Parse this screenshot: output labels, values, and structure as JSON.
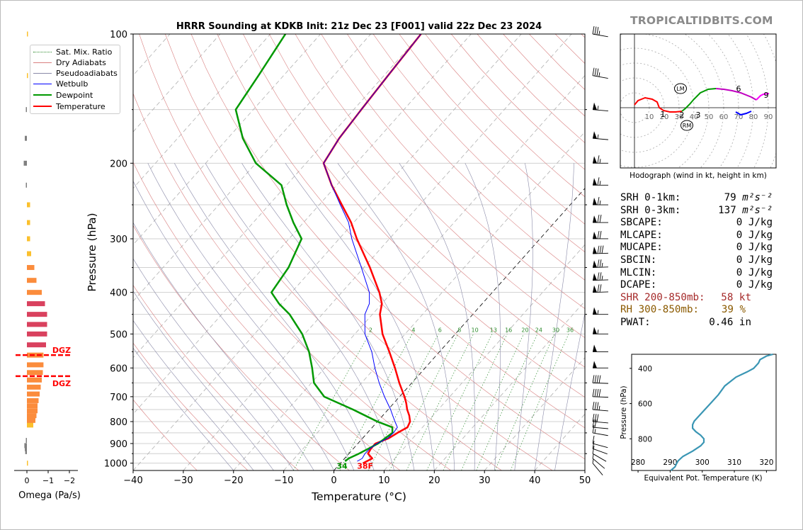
{
  "brand": "TROPICALTIDBITS.COM",
  "chart_data": [
    {
      "type": "line",
      "chart_kind": "skew-t log-p sounding",
      "title": "HRRR Sounding at KDKB Init: 21z Dec 23 [F001] valid 22z Dec 23 2024",
      "xlabel": "Temperature (°C)",
      "ylabel": "Pressure (hPa)",
      "xlim": [
        -40,
        50
      ],
      "ylim": [
        1040,
        100
      ],
      "y_scale": "log",
      "x_ticks": [
        "−40",
        "−30",
        "−20",
        "−10",
        "0",
        "10",
        "20",
        "30",
        "40",
        "50"
      ],
      "y_ticks": [
        "100",
        "200",
        "300",
        "400",
        "500",
        "600",
        "700",
        "800",
        "900",
        "1000"
      ],
      "legend_position": "top-left",
      "legend": [
        {
          "label": "Sat. Mix. Ratio",
          "color": "#2e8b2e",
          "style": "dotted"
        },
        {
          "label": "Dry Adiabats",
          "color": "#d98080",
          "style": "solid"
        },
        {
          "label": "Pseudoadiabats",
          "color": "#8a8aa8",
          "style": "solid"
        },
        {
          "label": "Wetbulb",
          "color": "#0000ff",
          "style": "solid"
        },
        {
          "label": "Dewpoint",
          "color": "#009900",
          "style": "solid"
        },
        {
          "label": "Temperature",
          "color": "#ff0000",
          "style": "solid"
        }
      ],
      "series": [
        {
          "name": "Temperature",
          "color": "#ff0000",
          "points": [
            [
              1000,
              4.5
            ],
            [
              975,
              5.5
            ],
            [
              950,
              3.8
            ],
            [
              925,
              3.5
            ],
            [
              900,
              3.5
            ],
            [
              875,
              5.2
            ],
            [
              850,
              6.0
            ],
            [
              825,
              7.0
            ],
            [
              800,
              6.5
            ],
            [
              775,
              5.3
            ],
            [
              750,
              3.8
            ],
            [
              725,
              2.5
            ],
            [
              700,
              1.0
            ],
            [
              650,
              -2.5
            ],
            [
              600,
              -6.0
            ],
            [
              550,
              -10.0
            ],
            [
              500,
              -14.5
            ],
            [
              450,
              -18.5
            ],
            [
              425,
              -20.0
            ],
            [
              400,
              -22.5
            ],
            [
              350,
              -28.8
            ],
            [
              300,
              -36.5
            ],
            [
              275,
              -40.5
            ],
            [
              250,
              -45.5
            ],
            [
              225,
              -51.0
            ],
            [
              200,
              -56.5
            ],
            [
              175,
              -57.8
            ],
            [
              150,
              -58.5
            ],
            [
              125,
              -59.2
            ],
            [
              100,
              -60.0
            ]
          ]
        },
        {
          "name": "Dewpoint",
          "color": "#009900",
          "points": [
            [
              990,
              0.6
            ],
            [
              975,
              0.8
            ],
            [
              950,
              2.0
            ],
            [
              925,
              3.0
            ],
            [
              900,
              4.0
            ],
            [
              850,
              5.0
            ],
            [
              825,
              4.0
            ],
            [
              800,
              0.0
            ],
            [
              750,
              -7.0
            ],
            [
              700,
              -15.0
            ],
            [
              650,
              -19.5
            ],
            [
              600,
              -22.5
            ],
            [
              550,
              -26.0
            ],
            [
              500,
              -30.5
            ],
            [
              450,
              -36.5
            ],
            [
              425,
              -40.5
            ],
            [
              400,
              -44.0
            ],
            [
              350,
              -45.0
            ],
            [
              300,
              -47.5
            ],
            [
              275,
              -52.0
            ],
            [
              250,
              -56.5
            ],
            [
              225,
              -61.0
            ],
            [
              200,
              -70.0
            ],
            [
              175,
              -77.0
            ],
            [
              150,
              -83.5
            ],
            [
              125,
              -85.0
            ],
            [
              100,
              -87.0
            ]
          ]
        },
        {
          "name": "Wetbulb",
          "color": "#0000ff",
          "points": [
            [
              990,
              3.0
            ],
            [
              975,
              3.5
            ],
            [
              950,
              3.2
            ],
            [
              925,
              3.3
            ],
            [
              900,
              3.8
            ],
            [
              875,
              5.0
            ],
            [
              850,
              5.2
            ],
            [
              825,
              5.0
            ],
            [
              800,
              3.5
            ],
            [
              775,
              2.0
            ],
            [
              750,
              0.5
            ],
            [
              700,
              -3.0
            ],
            [
              650,
              -6.5
            ],
            [
              600,
              -10.0
            ],
            [
              550,
              -13.5
            ],
            [
              500,
              -18.0
            ],
            [
              450,
              -21.5
            ],
            [
              425,
              -22.5
            ],
            [
              400,
              -24.5
            ],
            [
              350,
              -30.5
            ],
            [
              300,
              -37.5
            ],
            [
              275,
              -41.0
            ],
            [
              250,
              -45.8
            ],
            [
              225,
              -51.0
            ],
            [
              200,
              -56.5
            ],
            [
              175,
              -57.8
            ],
            [
              150,
              -58.5
            ],
            [
              125,
              -59.2
            ],
            [
              100,
              -60.0
            ]
          ]
        }
      ],
      "mixing_ratio_labels": [
        "2",
        "4",
        "6",
        "8",
        "10",
        "13",
        "16",
        "20",
        "24",
        "30",
        "36"
      ],
      "surface_dewpoint_label": "34",
      "surface_temp_label": "38F"
    },
    {
      "type": "bar",
      "chart_kind": "omega profile",
      "xlabel": "Omega (Pa/s)",
      "x_ticks": [
        "0",
        "−1",
        "−2"
      ],
      "dgz_label": "DGZ",
      "dgz_pressures": [
        560,
        627
      ],
      "color_scale": {
        "positive": "#808080",
        "weak": "#fbc02d",
        "moderate": "#fb8c3c",
        "strong": "#d9415e"
      },
      "bars": [
        {
          "p": 1000,
          "omega": -0.05
        },
        {
          "p": 940,
          "omega": 0.08
        },
        {
          "p": 925,
          "omega": 0.1
        },
        {
          "p": 910,
          "omega": 0.12
        },
        {
          "p": 885,
          "omega": 0.05
        },
        {
          "p": 815,
          "omega": -0.3
        },
        {
          "p": 795,
          "omega": -0.4
        },
        {
          "p": 775,
          "omega": -0.45
        },
        {
          "p": 755,
          "omega": -0.5
        },
        {
          "p": 735,
          "omega": -0.5
        },
        {
          "p": 715,
          "omega": -0.55
        },
        {
          "p": 690,
          "omega": -0.6
        },
        {
          "p": 665,
          "omega": -0.65
        },
        {
          "p": 640,
          "omega": -0.7
        },
        {
          "p": 615,
          "omega": -0.75
        },
        {
          "p": 590,
          "omega": -0.78
        },
        {
          "p": 560,
          "omega": -0.78
        },
        {
          "p": 530,
          "omega": -0.9
        },
        {
          "p": 500,
          "omega": -0.95
        },
        {
          "p": 475,
          "omega": -0.95
        },
        {
          "p": 450,
          "omega": -0.95
        },
        {
          "p": 425,
          "omega": -0.85
        },
        {
          "p": 400,
          "omega": -0.7
        },
        {
          "p": 375,
          "omega": -0.45
        },
        {
          "p": 350,
          "omega": -0.35
        },
        {
          "p": 325,
          "omega": -0.2
        },
        {
          "p": 300,
          "omega": -0.15
        },
        {
          "p": 275,
          "omega": -0.15
        },
        {
          "p": 250,
          "omega": -0.15
        },
        {
          "p": 225,
          "omega": 0.02
        },
        {
          "p": 200,
          "omega": 0.15
        },
        {
          "p": 175,
          "omega": 0.1
        },
        {
          "p": 150,
          "omega": 0.05
        },
        {
          "p": 125,
          "omega": -0.05
        },
        {
          "p": 100,
          "omega": -0.05
        }
      ]
    },
    {
      "type": "line",
      "chart_kind": "hodograph",
      "caption": "Hodograph (wind in kt, height in km)",
      "ring_labels": [
        "10",
        "20",
        "30",
        "40",
        "50",
        "60",
        "70",
        "80",
        "90"
      ],
      "height_labels": [
        "1",
        "2",
        "3",
        "6",
        "9"
      ],
      "storm_motion_labels": [
        "LM",
        "RM"
      ],
      "segments": [
        {
          "color": "#ff0000",
          "points": [
            [
              0,
              4
            ],
            [
              -5,
              10
            ],
            [
              -15,
              14
            ],
            [
              -25,
              12
            ],
            [
              -32,
              8
            ],
            [
              -35,
              0
            ]
          ]
        },
        {
          "color": "#ff0000",
          "points": [
            [
              -35,
              0
            ],
            [
              -41,
              -4
            ],
            [
              -50,
              -6
            ],
            [
              -58,
              -6
            ],
            [
              -67,
              -5
            ]
          ]
        },
        {
          "color": "#009900",
          "points": [
            [
              -67,
              -5
            ],
            [
              -72,
              -1
            ],
            [
              -78,
              5
            ],
            [
              -84,
              12
            ],
            [
              -93,
              21
            ],
            [
              -104,
              26
            ],
            [
              -115,
              27
            ]
          ]
        },
        {
          "color": "#c000c0",
          "points": [
            [
              -115,
              27
            ],
            [
              -126,
              26
            ],
            [
              -138,
              24
            ],
            [
              -150,
              21
            ],
            [
              -165,
              15
            ],
            [
              -172,
              11
            ]
          ]
        },
        {
          "color": "#ff00ff",
          "points": [
            [
              -172,
              11
            ],
            [
              -178,
              17
            ],
            [
              -182,
              19
            ],
            [
              -190,
              20
            ]
          ]
        },
        {
          "color": "#0000ff",
          "points": [
            [
              -165,
              -5
            ],
            [
              -158,
              -8
            ],
            [
              -150,
              -10
            ],
            [
              -143,
              -6
            ]
          ]
        }
      ]
    },
    {
      "type": "line",
      "chart_kind": "equivalent potential temperature profile",
      "xlabel": "Equivalent Pot. Temperature (K)",
      "ylabel": "Pressure (hPa)",
      "xlim": [
        278,
        323
      ],
      "ylim": [
        980,
        320
      ],
      "x_ticks": [
        "280",
        "290",
        "300",
        "310",
        "320"
      ],
      "y_ticks": [
        "400",
        "600",
        "800"
      ],
      "series": [
        {
          "color": "#3a96b4",
          "points": [
            [
              980,
              290.2
            ],
            [
              960,
              291.5
            ],
            [
              940,
              292.0
            ],
            [
              925,
              292.5
            ],
            [
              900,
              294.0
            ],
            [
              870,
              297.0
            ],
            [
              840,
              299.5
            ],
            [
              820,
              300.5
            ],
            [
              800,
              300.5
            ],
            [
              780,
              299.5
            ],
            [
              760,
              298.0
            ],
            [
              740,
              297.0
            ],
            [
              720,
              297.0
            ],
            [
              700,
              297.5
            ],
            [
              650,
              300.0
            ],
            [
              600,
              302.5
            ],
            [
              550,
              305.0
            ],
            [
              500,
              307.0
            ],
            [
              450,
              310.5
            ],
            [
              420,
              314.0
            ],
            [
              400,
              316.0
            ],
            [
              370,
              317.5
            ],
            [
              350,
              318.0
            ],
            [
              330,
              320.0
            ],
            [
              320,
              322.0
            ]
          ]
        }
      ]
    }
  ],
  "indices": {
    "srh01_label": "SRH 0-1km:",
    "srh01_value": "79",
    "srh03_label": "SRH 0-3km:",
    "srh03_value": "137",
    "srh_unit": "m²s⁻²",
    "sbcape_label": "SBCAPE:",
    "sbcape_value": "0 J/kg",
    "mlcape_label": "MLCAPE:",
    "mlcape_value": "0 J/kg",
    "mucape_label": "MUCAPE:",
    "mucape_value": "0 J/kg",
    "sbcin_label": "SBCIN:",
    "sbcin_value": "0 J/kg",
    "mlcin_label": "MLCIN:",
    "mlcin_value": "0 J/kg",
    "dcape_label": "DCAPE:",
    "dcape_value": "0 J/kg",
    "shr_label": "SHR 200-850mb:",
    "shr_value": "58 kt",
    "shr_color": "#a52a2a",
    "rh_label": "RH 300-850mb:",
    "rh_value": "39 %",
    "rh_color": "#8b5a00",
    "pwat_label": "PWAT:",
    "pwat_value": "0.46 in"
  },
  "wind_barbs": [
    {
      "p": 100,
      "speed": 35,
      "dir": 280
    },
    {
      "p": 125,
      "speed": 35,
      "dir": 280
    },
    {
      "p": 150,
      "speed": 55,
      "dir": 275
    },
    {
      "p": 175,
      "speed": 55,
      "dir": 275
    },
    {
      "p": 200,
      "speed": 65,
      "dir": 270
    },
    {
      "p": 225,
      "speed": 65,
      "dir": 270
    },
    {
      "p": 250,
      "speed": 65,
      "dir": 270
    },
    {
      "p": 275,
      "speed": 70,
      "dir": 270
    },
    {
      "p": 300,
      "speed": 70,
      "dir": 270
    },
    {
      "p": 325,
      "speed": 80,
      "dir": 268
    },
    {
      "p": 350,
      "speed": 75,
      "dir": 268
    },
    {
      "p": 375,
      "speed": 75,
      "dir": 268
    },
    {
      "p": 400,
      "speed": 70,
      "dir": 268
    },
    {
      "p": 450,
      "speed": 55,
      "dir": 270
    },
    {
      "p": 500,
      "speed": 55,
      "dir": 270
    },
    {
      "p": 550,
      "speed": 50,
      "dir": 270
    },
    {
      "p": 600,
      "speed": 50,
      "dir": 270
    },
    {
      "p": 650,
      "speed": 40,
      "dir": 272
    },
    {
      "p": 700,
      "speed": 40,
      "dir": 272
    },
    {
      "p": 750,
      "speed": 35,
      "dir": 275
    },
    {
      "p": 800,
      "speed": 30,
      "dir": 275
    },
    {
      "p": 825,
      "speed": 20,
      "dir": 275
    },
    {
      "p": 850,
      "speed": 15,
      "dir": 280
    },
    {
      "p": 900,
      "speed": 10,
      "dir": 285
    },
    {
      "p": 925,
      "speed": 10,
      "dir": 290
    },
    {
      "p": 950,
      "speed": 10,
      "dir": 300
    },
    {
      "p": 975,
      "speed": 5,
      "dir": 310
    },
    {
      "p": 1000,
      "speed": 5,
      "dir": 320
    }
  ]
}
